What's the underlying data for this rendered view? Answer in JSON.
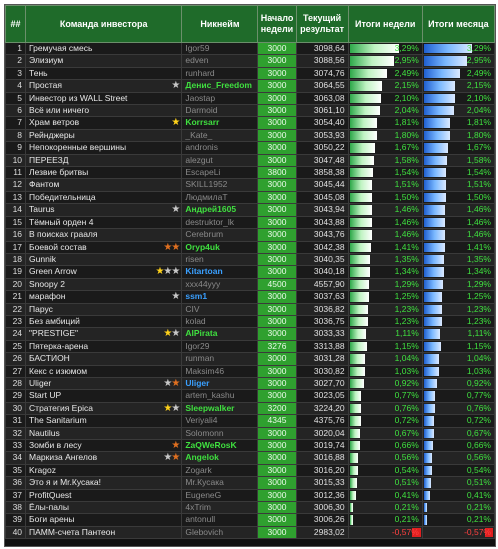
{
  "header": {
    "col_hash": "##",
    "col_team": "Команда инвестора",
    "col_nick": "Никнейм",
    "col_start": "Начало недели",
    "col_current": "Текущий результат",
    "col_week": "Итоги недели",
    "col_month": "Итоги месяца"
  },
  "colors": {
    "header_bg": "#1f6b2a",
    "start_bg": "#2fa02f",
    "positive_text": "#3fe03f",
    "negative_text": "#ff4040",
    "nick_highlight_green": "#3fe03f",
    "nick_highlight_blue": "#3aa0ff"
  },
  "rows": [
    {
      "n": "1",
      "team": "Гремучая смесь",
      "nick": "Igor59",
      "start": "3000",
      "current": "3098,64",
      "week": "3,29%",
      "month": "3,29%",
      "wf": 0.329,
      "mf": 0.329,
      "stars": [],
      "nick_style": ""
    },
    {
      "n": "2",
      "team": "Элизиум",
      "nick": "edven",
      "start": "3000",
      "current": "3088,56",
      "week": "2,95%",
      "month": "2,95%",
      "wf": 0.295,
      "mf": 0.295,
      "stars": [],
      "nick_style": ""
    },
    {
      "n": "3",
      "team": "Тень",
      "nick": "runhard",
      "start": "3000",
      "current": "3074,76",
      "week": "2,49%",
      "month": "2,49%",
      "wf": 0.249,
      "mf": 0.249,
      "stars": [],
      "nick_style": ""
    },
    {
      "n": "4",
      "team": "Простая",
      "nick": "Денис_Freedom",
      "start": "3000",
      "current": "3064,55",
      "week": "2,15%",
      "month": "2,15%",
      "wf": 0.215,
      "mf": 0.215,
      "stars": [
        "silver"
      ],
      "nick_style": "green"
    },
    {
      "n": "5",
      "team": "Инвестор из WALL Street",
      "nick": "Jaostap",
      "start": "3000",
      "current": "3063,08",
      "week": "2,10%",
      "month": "2,10%",
      "wf": 0.21,
      "mf": 0.21,
      "stars": [],
      "nick_style": ""
    },
    {
      "n": "6",
      "team": "Всё или ничего",
      "nick": "Darmoid",
      "start": "3000",
      "current": "3061,10",
      "week": "2,04%",
      "month": "2,04%",
      "wf": 0.204,
      "mf": 0.204,
      "stars": [],
      "nick_style": ""
    },
    {
      "n": "7",
      "team": "Храм ветров",
      "nick": "Korrsarr",
      "start": "3000",
      "current": "3054,40",
      "week": "1,81%",
      "month": "1,81%",
      "wf": 0.181,
      "mf": 0.181,
      "stars": [
        "gold"
      ],
      "nick_style": "green"
    },
    {
      "n": "8",
      "team": "Рейнджеры",
      "nick": "_Kate_",
      "start": "3000",
      "current": "3053,93",
      "week": "1,80%",
      "month": "1,80%",
      "wf": 0.18,
      "mf": 0.18,
      "stars": [],
      "nick_style": ""
    },
    {
      "n": "9",
      "team": "Непокоренные вершины",
      "nick": "andronis",
      "start": "3000",
      "current": "3050,22",
      "week": "1,67%",
      "month": "1,67%",
      "wf": 0.167,
      "mf": 0.167,
      "stars": [],
      "nick_style": ""
    },
    {
      "n": "10",
      "team": "ПЕРЕЕЗД",
      "nick": "alezgut",
      "start": "3000",
      "current": "3047,48",
      "week": "1,58%",
      "month": "1,58%",
      "wf": 0.158,
      "mf": 0.158,
      "stars": [],
      "nick_style": ""
    },
    {
      "n": "11",
      "team": "Лезвие бритвы",
      "nick": "EscapeLi",
      "start": "3800",
      "current": "3858,38",
      "week": "1,54%",
      "month": "1,54%",
      "wf": 0.154,
      "mf": 0.154,
      "stars": [],
      "nick_style": ""
    },
    {
      "n": "12",
      "team": "Фантом",
      "nick": "SKILL1952",
      "start": "3000",
      "current": "3045,44",
      "week": "1,51%",
      "month": "1,51%",
      "wf": 0.151,
      "mf": 0.151,
      "stars": [],
      "nick_style": ""
    },
    {
      "n": "13",
      "team": "Победительница",
      "nick": "ЛюдмилаТ",
      "start": "3000",
      "current": "3045,08",
      "week": "1,50%",
      "month": "1,50%",
      "wf": 0.15,
      "mf": 0.15,
      "stars": [],
      "nick_style": ""
    },
    {
      "n": "14",
      "team": "Taurus",
      "nick": "Андрей1605",
      "start": "3000",
      "current": "3043,94",
      "week": "1,46%",
      "month": "1,46%",
      "wf": 0.146,
      "mf": 0.146,
      "stars": [
        "silver"
      ],
      "nick_style": "green"
    },
    {
      "n": "15",
      "team": "Тёмный орден 4",
      "nick": "destruktor_lk",
      "start": "3000",
      "current": "3043,88",
      "week": "1,46%",
      "month": "1,46%",
      "wf": 0.146,
      "mf": 0.146,
      "stars": [],
      "nick_style": ""
    },
    {
      "n": "16",
      "team": "В поисках грааля",
      "nick": "Cerebrum",
      "start": "3000",
      "current": "3043,76",
      "week": "1,46%",
      "month": "1,46%",
      "wf": 0.146,
      "mf": 0.146,
      "stars": [],
      "nick_style": ""
    },
    {
      "n": "17",
      "team": "Боевой состав",
      "nick": "Oryp4uk",
      "start": "3000",
      "current": "3042,38",
      "week": "1,41%",
      "month": "1,41%",
      "wf": 0.141,
      "mf": 0.141,
      "stars": [
        "bronze",
        "bronze"
      ],
      "nick_style": "green"
    },
    {
      "n": "18",
      "team": "Gunnik",
      "nick": "risen",
      "start": "3000",
      "current": "3040,35",
      "week": "1,35%",
      "month": "1,35%",
      "wf": 0.135,
      "mf": 0.135,
      "stars": [],
      "nick_style": ""
    },
    {
      "n": "19",
      "team": "Green Arrow",
      "nick": "Kitartoan",
      "start": "3000",
      "current": "3040,18",
      "week": "1,34%",
      "month": "1,34%",
      "wf": 0.134,
      "mf": 0.134,
      "stars": [
        "gold",
        "silver",
        "silver"
      ],
      "nick_style": "blue"
    },
    {
      "n": "20",
      "team": "Snoopy 2",
      "nick": "xxx44yyy",
      "start": "4500",
      "current": "4557,90",
      "week": "1,29%",
      "month": "1,29%",
      "wf": 0.129,
      "mf": 0.129,
      "stars": [],
      "nick_style": ""
    },
    {
      "n": "21",
      "team": "марафон",
      "nick": "ssm1",
      "start": "3000",
      "current": "3037,63",
      "week": "1,25%",
      "month": "1,25%",
      "wf": 0.125,
      "mf": 0.125,
      "stars": [
        "silver"
      ],
      "nick_style": "blue"
    },
    {
      "n": "22",
      "team": "Парус",
      "nick": "CIV",
      "start": "3000",
      "current": "3036,82",
      "week": "1,23%",
      "month": "1,23%",
      "wf": 0.123,
      "mf": 0.123,
      "stars": [],
      "nick_style": ""
    },
    {
      "n": "23",
      "team": "Без амбиций",
      "nick": "kolad",
      "start": "3000",
      "current": "3036,75",
      "week": "1,23%",
      "month": "1,23%",
      "wf": 0.123,
      "mf": 0.123,
      "stars": [],
      "nick_style": ""
    },
    {
      "n": "24",
      "team": "\"PRESTIGE\"",
      "nick": "AlPirata",
      "start": "3000",
      "current": "3033,33",
      "week": "1,11%",
      "month": "1,11%",
      "wf": 0.111,
      "mf": 0.111,
      "stars": [
        "gold",
        "silver"
      ],
      "nick_style": "green"
    },
    {
      "n": "25",
      "team": "Пятерка-арена",
      "nick": "Igor29",
      "start": "3276",
      "current": "3313,88",
      "week": "1,15%",
      "month": "1,15%",
      "wf": 0.115,
      "mf": 0.115,
      "stars": [],
      "nick_style": ""
    },
    {
      "n": "26",
      "team": "БАСТИОН",
      "nick": "runman",
      "start": "3000",
      "current": "3031,28",
      "week": "1,04%",
      "month": "1,04%",
      "wf": 0.104,
      "mf": 0.104,
      "stars": [],
      "nick_style": ""
    },
    {
      "n": "27",
      "team": "Кекс с изюмом",
      "nick": "Maksim46",
      "start": "3000",
      "current": "3030,82",
      "week": "1,03%",
      "month": "1,03%",
      "wf": 0.103,
      "mf": 0.103,
      "stars": [],
      "nick_style": ""
    },
    {
      "n": "28",
      "team": "Uliger",
      "nick": "Uliger",
      "start": "3000",
      "current": "3027,70",
      "week": "0,92%",
      "month": "0,92%",
      "wf": 0.092,
      "mf": 0.092,
      "stars": [
        "silver",
        "bronze"
      ],
      "nick_style": "blue"
    },
    {
      "n": "29",
      "team": "Start UP",
      "nick": "artem_kashu",
      "start": "3000",
      "current": "3023,05",
      "week": "0,77%",
      "month": "0,77%",
      "wf": 0.077,
      "mf": 0.077,
      "stars": [],
      "nick_style": ""
    },
    {
      "n": "30",
      "team": "Стратегия Epica",
      "nick": "Sleepwalker",
      "start": "3200",
      "current": "3224,20",
      "week": "0,76%",
      "month": "0,76%",
      "wf": 0.076,
      "mf": 0.076,
      "stars": [
        "gold",
        "silver"
      ],
      "nick_style": "green"
    },
    {
      "n": "31",
      "team": "The Sanitarium",
      "nick": "Veriyali4",
      "start": "4345",
      "current": "4375,76",
      "week": "0,72%",
      "month": "0,72%",
      "wf": 0.072,
      "mf": 0.072,
      "stars": [],
      "nick_style": ""
    },
    {
      "n": "32",
      "team": "Nautilus",
      "nick": "Solomonn",
      "start": "3000",
      "current": "3020,04",
      "week": "0,67%",
      "month": "0,67%",
      "wf": 0.067,
      "mf": 0.067,
      "stars": [],
      "nick_style": ""
    },
    {
      "n": "33",
      "team": "Зомби в лесу",
      "nick": "ZaQWeRosK",
      "start": "3000",
      "current": "3019,74",
      "week": "0,66%",
      "month": "0,66%",
      "wf": 0.066,
      "mf": 0.066,
      "stars": [
        "bronze"
      ],
      "nick_style": "green"
    },
    {
      "n": "34",
      "team": "Маркиза Ангелов",
      "nick": "Angelok",
      "start": "3000",
      "current": "3016,88",
      "week": "0,56%",
      "month": "0,56%",
      "wf": 0.056,
      "mf": 0.056,
      "stars": [
        "silver",
        "bronze"
      ],
      "nick_style": "green"
    },
    {
      "n": "35",
      "team": "Kragoz",
      "nick": "Zogark",
      "start": "3000",
      "current": "3016,20",
      "week": "0,54%",
      "month": "0,54%",
      "wf": 0.054,
      "mf": 0.054,
      "stars": [],
      "nick_style": ""
    },
    {
      "n": "36",
      "team": "Это я и Mr.Кусака!",
      "nick": "Mr.Кусака",
      "start": "3000",
      "current": "3015,33",
      "week": "0,51%",
      "month": "0,51%",
      "wf": 0.051,
      "mf": 0.051,
      "stars": [],
      "nick_style": ""
    },
    {
      "n": "37",
      "team": "ProfitQuest",
      "nick": "EugeneG",
      "start": "3000",
      "current": "3012,36",
      "week": "0,41%",
      "month": "0,41%",
      "wf": 0.041,
      "mf": 0.041,
      "stars": [],
      "nick_style": ""
    },
    {
      "n": "38",
      "team": "Ёлы-палы",
      "nick": "4xTrim",
      "start": "3000",
      "current": "3006,30",
      "week": "0,21%",
      "month": "0,21%",
      "wf": 0.021,
      "mf": 0.021,
      "stars": [],
      "nick_style": ""
    },
    {
      "n": "39",
      "team": "Боги арены",
      "nick": "antonull",
      "start": "3000",
      "current": "3006,26",
      "week": "0,21%",
      "month": "0,21%",
      "wf": 0.021,
      "mf": 0.021,
      "stars": [],
      "nick_style": ""
    },
    {
      "n": "40",
      "team": "ПАММ-счета Пантеон",
      "nick": "Glebovich",
      "start": "3000",
      "current": "2983,02",
      "week": "-0,57%",
      "month": "-0,57%",
      "wf": -0.057,
      "mf": -0.057,
      "stars": [],
      "nick_style": ""
    }
  ]
}
